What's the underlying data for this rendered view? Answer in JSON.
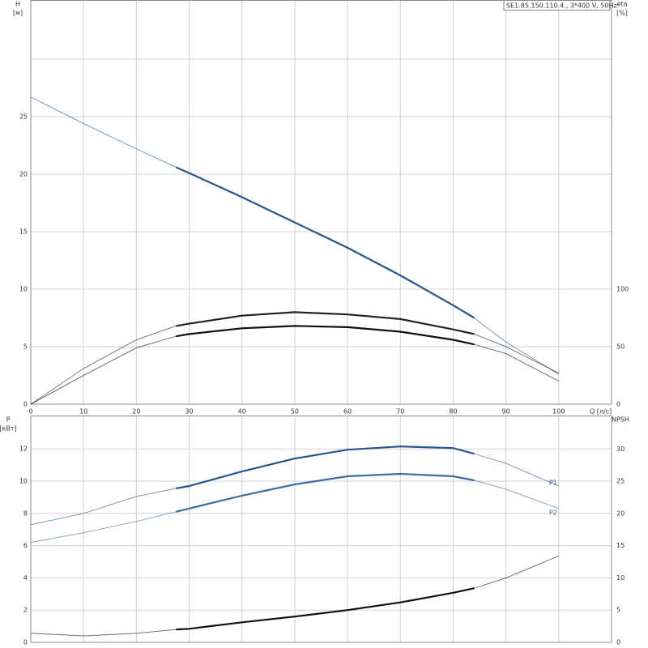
{
  "chart_data": [
    {
      "type": "line",
      "title": "SE1.85.150.110.4., 3*400 V, 50Hz",
      "xlabel": "Q [л/с]",
      "ylabel": [
        "H",
        "[м]"
      ],
      "y2label": [
        "eta",
        "[%]"
      ],
      "x": [
        0,
        10,
        20,
        27.5,
        30,
        40,
        50,
        60,
        70,
        80,
        84,
        90,
        100
      ],
      "xlim": [
        0,
        110
      ],
      "xticks": [
        0,
        10,
        20,
        30,
        40,
        50,
        60,
        70,
        80,
        90,
        100
      ],
      "show_xtick_labels": true,
      "ylim": [
        0,
        35.14
      ],
      "yticks": [
        0,
        5,
        10,
        15,
        20,
        25
      ],
      "ygrid": [
        30
      ],
      "y2lim": [
        0,
        351.4
      ],
      "y2ticks": [
        0,
        50,
        100
      ],
      "highlight_range": [
        27.5,
        84
      ],
      "grid": true,
      "series": [
        {
          "color": "#24568f",
          "axis": "y",
          "values": [
            26.7,
            24.4,
            22.2,
            20.6,
            20.1,
            18.0,
            15.8,
            13.6,
            11.2,
            8.6,
            7.5,
            5.4,
            2.6
          ]
        },
        {
          "color": "#222222",
          "axis": "y2",
          "values": [
            0,
            31,
            56,
            68,
            70,
            77,
            80,
            78,
            74,
            65,
            61,
            50,
            27
          ]
        },
        {
          "color": "#111111",
          "axis": "y2",
          "values": [
            0,
            25,
            49,
            59,
            61,
            66,
            68,
            67,
            63,
            56,
            52,
            44,
            20
          ]
        }
      ]
    },
    {
      "type": "line",
      "ylabel": [
        "P",
        "[кВт]"
      ],
      "y2label": [
        "NPSH"
      ],
      "x": [
        0,
        10,
        20,
        27.5,
        30,
        40,
        50,
        60,
        70,
        80,
        84,
        90,
        100
      ],
      "xlim": [
        0,
        110
      ],
      "xticks": [
        0,
        10,
        20,
        30,
        40,
        50,
        60,
        70,
        80,
        90,
        100
      ],
      "show_xtick_labels": false,
      "ylim": [
        0,
        14.07
      ],
      "yticks": [
        0,
        2,
        4,
        6,
        8,
        10,
        12
      ],
      "y2lim": [
        0,
        35.2
      ],
      "y2ticks": [
        0,
        5,
        10,
        15,
        20,
        25,
        30
      ],
      "highlight_range": [
        27.5,
        84
      ],
      "grid": true,
      "series": [
        {
          "name": "P1",
          "color": "#24568f",
          "axis": "y",
          "values": [
            7.3,
            8.0,
            9.05,
            9.55,
            9.7,
            10.6,
            11.4,
            11.95,
            12.15,
            12.05,
            11.7,
            11.1,
            9.7
          ]
        },
        {
          "name": "P2",
          "color": "#3a6ea5",
          "axis": "y",
          "values": [
            6.2,
            6.8,
            7.5,
            8.1,
            8.3,
            9.1,
            9.8,
            10.3,
            10.45,
            10.3,
            10.05,
            9.5,
            8.3
          ]
        },
        {
          "color": "#111111",
          "axis": "y2",
          "values": [
            1.4,
            1.0,
            1.4,
            2.0,
            2.1,
            3.1,
            4.0,
            5.0,
            6.2,
            7.7,
            8.4,
            10.0,
            13.4
          ]
        }
      ]
    }
  ]
}
